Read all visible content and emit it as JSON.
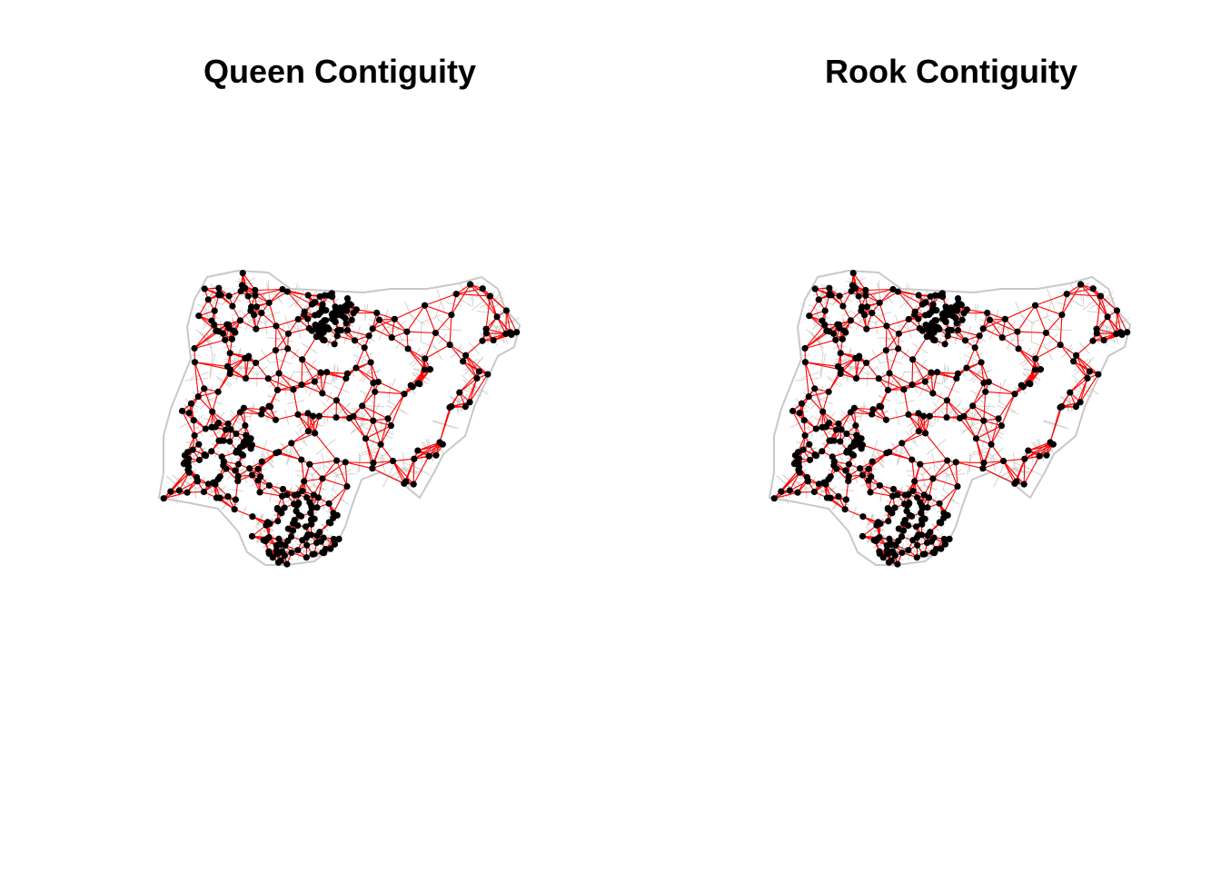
{
  "panels": [
    {
      "title": "Queen Contiguity"
    },
    {
      "title": "Rook Contiguity"
    }
  ],
  "colors": {
    "background": "#ffffff",
    "boundary": "#c8c8c8",
    "link": "#ff0000",
    "point": "#000000"
  }
}
